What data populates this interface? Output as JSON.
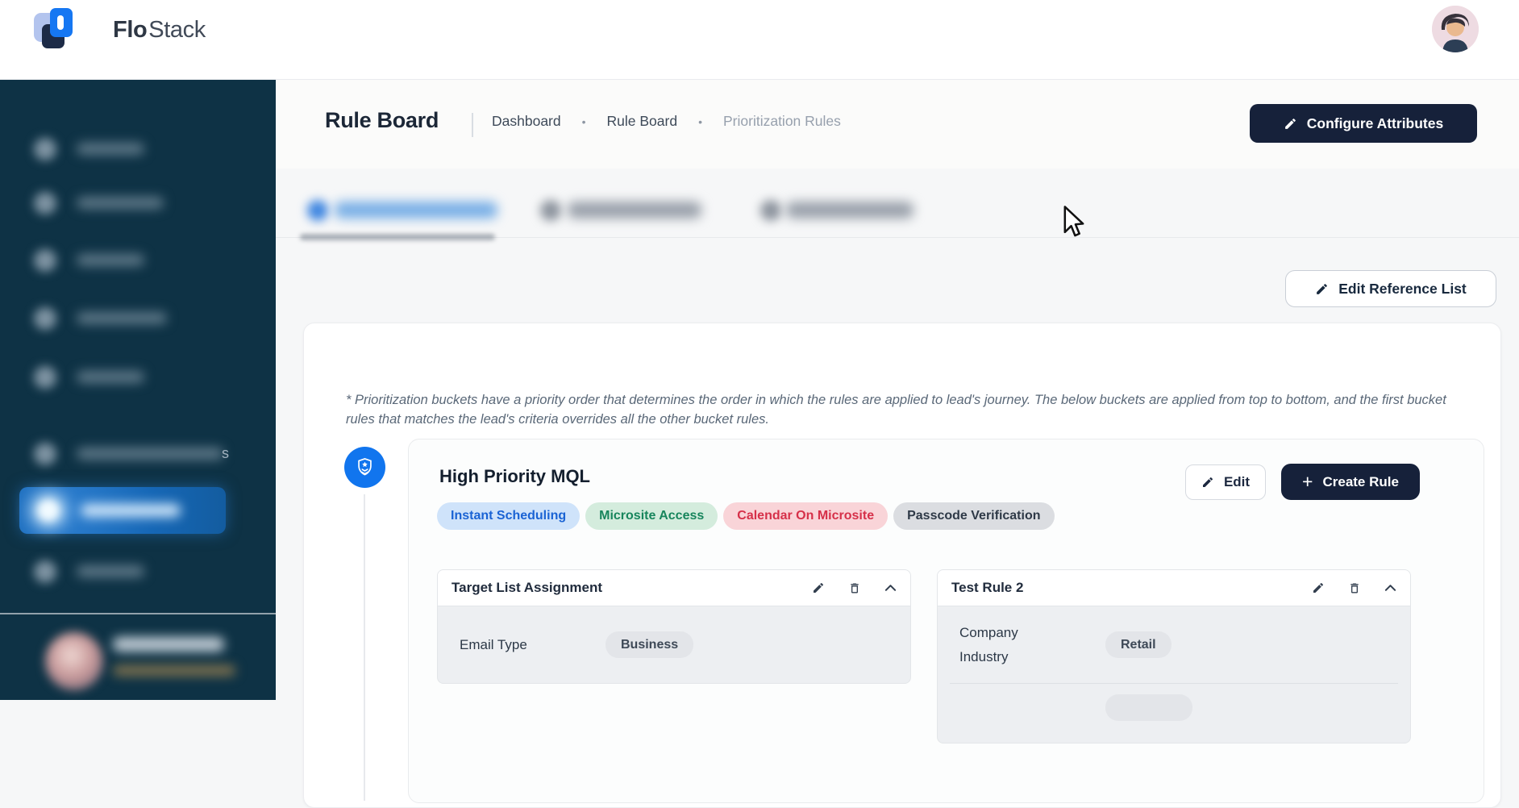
{
  "brand": {
    "bold": "Flo",
    "light": "Stack"
  },
  "page": {
    "title": "Rule Board",
    "breadcrumbs": [
      "Dashboard",
      "Rule Board",
      "Prioritization Rules"
    ],
    "separator": "•"
  },
  "actions": {
    "configure_attributes": "Configure Attributes",
    "edit_reference_list": "Edit Reference List",
    "edit": "Edit",
    "create_rule": "Create Rule",
    "plus": "+"
  },
  "tabs": [
    {
      "blurred": true,
      "active": true,
      "tint": "blue"
    },
    {
      "blurred": true,
      "active": false,
      "tint": "gray"
    },
    {
      "blurred": true,
      "active": false,
      "tint": "gray"
    }
  ],
  "sidebar": {
    "items": [
      {
        "blurred": true
      },
      {
        "blurred": true
      },
      {
        "blurred": true
      },
      {
        "blurred": true
      },
      {
        "blurred": true
      },
      {
        "blurred": true,
        "visible_text": "s"
      },
      {
        "blurred": true,
        "active": true
      },
      {
        "blurred": true
      }
    ]
  },
  "note": "* Prioritization buckets have a priority order that determines the order in which the rules are applied to lead's journey. The below buckets are applied from top to bottom, and the first bucket rules that matches the lead's criteria overrides all the other bucket rules.",
  "bucket": {
    "name": "High Priority MQL",
    "tags": [
      {
        "label": "Instant Scheduling",
        "type": "blue"
      },
      {
        "label": "Microsite Access",
        "type": "green"
      },
      {
        "label": "Calendar On Microsite",
        "type": "red"
      },
      {
        "label": "Passcode Verification",
        "type": "gray"
      }
    ],
    "rules": [
      {
        "title": "Target List Assignment",
        "conditions": [
          {
            "label": "Email Type",
            "value": "Business"
          }
        ],
        "has_partial_next_row": false
      },
      {
        "title": "Test Rule 2",
        "conditions": [
          {
            "label": "Company Industry",
            "value": "Retail"
          }
        ],
        "has_partial_next_row": true
      }
    ]
  },
  "colors": {
    "sidebar_bg": "#0e3245",
    "active_nav": "#1667b6",
    "accent_blue": "#1175ee",
    "dark_button": "#16213a",
    "tag_blue_bg": "#cfe3fa",
    "tag_blue_text": "#1a63d4",
    "tag_green_bg": "#d4ecdd",
    "tag_green_text": "#17855c",
    "tag_red_bg": "#f9d4d8",
    "tag_red_text": "#d63049",
    "tag_gray_bg": "#dbdde1",
    "tag_gray_text": "#2e3947"
  }
}
